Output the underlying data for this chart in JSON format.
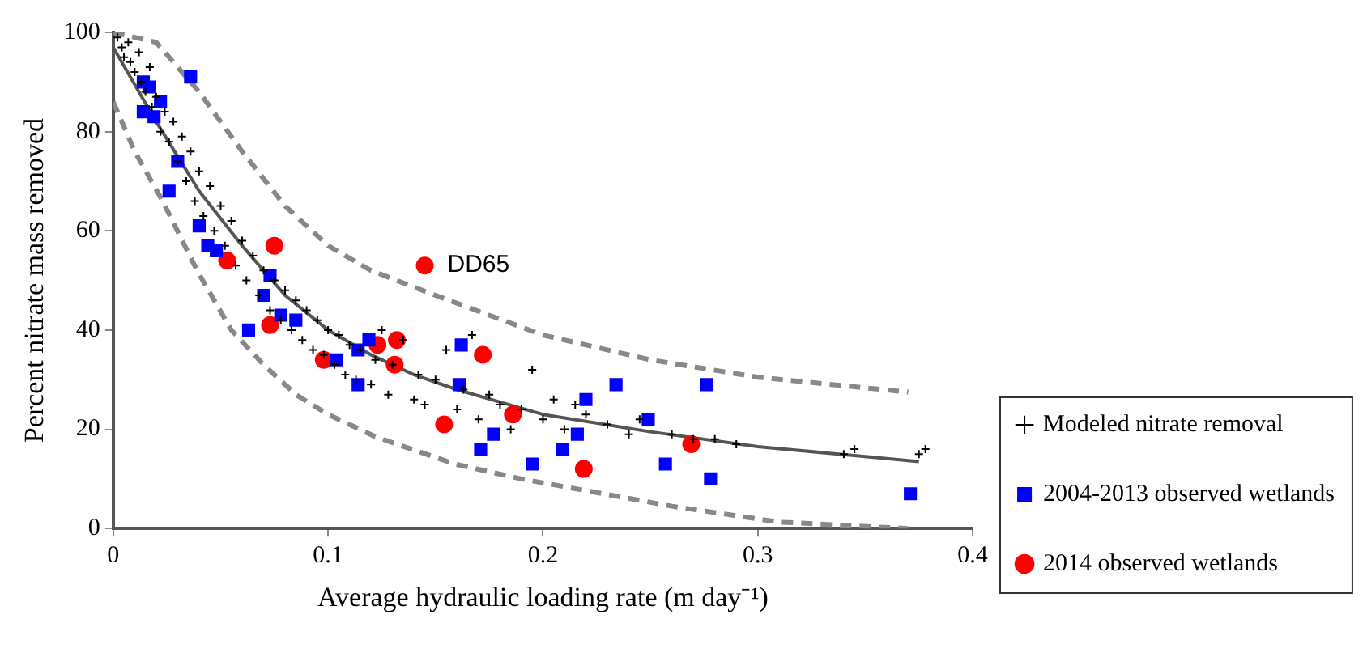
{
  "chart_data": {
    "type": "scatter",
    "xlabel": "Average hydraulic loading rate (m day⁻¹)",
    "ylabel": "Percent nitrate mass removed",
    "xlim": [
      0,
      0.4
    ],
    "xticks": [
      0,
      0.1,
      0.2,
      0.3,
      0.4
    ],
    "ylim": [
      0,
      100
    ],
    "yticks": [
      0,
      20,
      40,
      60,
      80,
      100
    ],
    "grid": false,
    "legend": "right",
    "annotations": [
      {
        "text": "DD65",
        "x": 0.145,
        "y": 53
      }
    ],
    "series": [
      {
        "name": "Modeled nitrate removal",
        "marker": "cross",
        "color": "#000000",
        "x": [
          0.002,
          0.004,
          0.005,
          0.007,
          0.008,
          0.01,
          0.012,
          0.013,
          0.015,
          0.017,
          0.018,
          0.02,
          0.022,
          0.024,
          0.026,
          0.028,
          0.03,
          0.032,
          0.034,
          0.036,
          0.038,
          0.04,
          0.042,
          0.045,
          0.047,
          0.05,
          0.052,
          0.055,
          0.057,
          0.06,
          0.062,
          0.065,
          0.068,
          0.07,
          0.073,
          0.075,
          0.078,
          0.08,
          0.083,
          0.085,
          0.088,
          0.09,
          0.093,
          0.095,
          0.098,
          0.1,
          0.103,
          0.105,
          0.108,
          0.11,
          0.113,
          0.115,
          0.12,
          0.122,
          0.125,
          0.128,
          0.13,
          0.135,
          0.14,
          0.142,
          0.145,
          0.15,
          0.155,
          0.16,
          0.163,
          0.167,
          0.17,
          0.175,
          0.18,
          0.185,
          0.19,
          0.195,
          0.2,
          0.205,
          0.21,
          0.215,
          0.22,
          0.23,
          0.24,
          0.245,
          0.26,
          0.27,
          0.28,
          0.29,
          0.34,
          0.345,
          0.375,
          0.378
        ],
        "values": [
          99,
          97,
          95,
          98,
          94,
          92,
          96,
          90,
          88,
          93,
          85,
          87,
          80,
          84,
          78,
          82,
          74,
          79,
          70,
          76,
          66,
          72,
          63,
          69,
          60,
          65,
          57,
          62,
          53,
          58,
          50,
          55,
          47,
          52,
          44,
          50,
          42,
          48,
          40,
          46,
          38,
          44,
          36,
          42,
          35,
          40,
          33,
          39,
          31,
          37,
          30,
          36,
          29,
          34,
          40,
          27,
          33,
          38,
          26,
          31,
          25,
          30,
          36,
          24,
          28,
          39,
          22,
          27,
          25,
          20,
          24,
          32,
          22,
          26,
          20,
          25,
          23,
          21,
          19,
          22,
          19,
          18,
          18,
          17,
          15,
          16,
          15,
          16
        ]
      },
      {
        "name": "2004-2013 observed wetlands",
        "marker": "square",
        "color": "#0000ff",
        "x": [
          0.036,
          0.014,
          0.017,
          0.022,
          0.014,
          0.019,
          0.03,
          0.026,
          0.04,
          0.044,
          0.048,
          0.073,
          0.07,
          0.078,
          0.085,
          0.063,
          0.119,
          0.114,
          0.104,
          0.114,
          0.162,
          0.161,
          0.177,
          0.171,
          0.195,
          0.209,
          0.216,
          0.22,
          0.234,
          0.249,
          0.257,
          0.276,
          0.278,
          0.371
        ],
        "values": [
          91,
          90,
          89,
          86,
          84,
          83,
          74,
          68,
          61,
          57,
          56,
          51,
          47,
          43,
          42,
          40,
          38,
          36,
          34,
          29,
          37,
          29,
          19,
          16,
          13,
          16,
          19,
          26,
          29,
          22,
          13,
          29,
          10,
          7
        ]
      },
      {
        "name": "2014 observed wetlands",
        "marker": "circle",
        "color": "#ff0000",
        "x": [
          0.075,
          0.053,
          0.145,
          0.073,
          0.098,
          0.123,
          0.132,
          0.131,
          0.172,
          0.154,
          0.186,
          0.219,
          0.269
        ],
        "values": [
          57,
          54,
          53,
          41,
          34,
          37,
          38,
          33,
          35,
          21,
          23,
          12,
          17
        ]
      },
      {
        "type": "line",
        "line_style": "solid",
        "color": "#555555",
        "x": [
          0,
          0.02,
          0.04,
          0.06,
          0.08,
          0.1,
          0.12,
          0.14,
          0.16,
          0.18,
          0.2,
          0.25,
          0.3,
          0.35,
          0.375
        ],
        "values": [
          97,
          82,
          68,
          57,
          47,
          40,
          35,
          31,
          28,
          25.5,
          23,
          19.5,
          16.5,
          14.5,
          13.5
        ]
      },
      {
        "type": "line",
        "line_style": "dashed",
        "color": "#888888",
        "x": [
          0,
          0.02,
          0.04,
          0.06,
          0.08,
          0.1,
          0.12,
          0.15,
          0.2,
          0.25,
          0.3,
          0.37
        ],
        "values": [
          100,
          98,
          88,
          76,
          65,
          57,
          52,
          47,
          39,
          34,
          30.5,
          27.5
        ]
      },
      {
        "type": "line",
        "line_style": "dashed",
        "color": "#888888",
        "x": [
          0,
          0.01,
          0.023,
          0.039,
          0.055,
          0.07,
          0.085,
          0.1,
          0.122,
          0.159,
          0.19,
          0.218,
          0.26,
          0.31,
          0.37
        ],
        "values": [
          86,
          76,
          66,
          52,
          40,
          33,
          27,
          23,
          18.5,
          13,
          10,
          7.8,
          4.5,
          1.3,
          0
        ]
      }
    ]
  }
}
